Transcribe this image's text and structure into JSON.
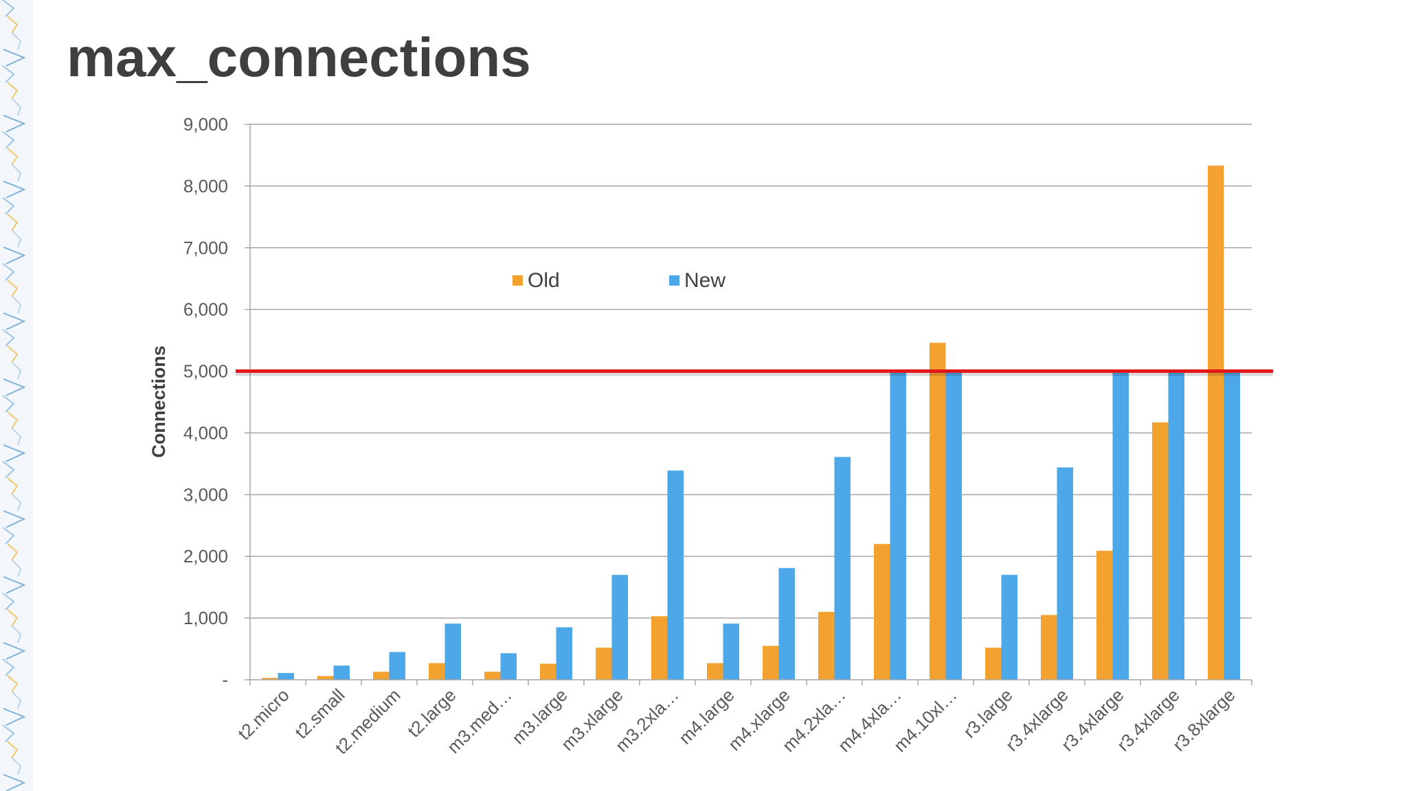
{
  "slide": {
    "title": "max_connections"
  },
  "colors": {
    "old": "#f4a22f",
    "new": "#4da8ea",
    "limit_line": "#e3161a",
    "grid": "#a6a6a6",
    "axis": "#a6a6a6"
  },
  "chart_data": {
    "type": "bar",
    "title": "",
    "xlabel": "",
    "ylabel": "Connections",
    "ylim": [
      0,
      9000
    ],
    "yticks": [
      0,
      1000,
      2000,
      3000,
      4000,
      5000,
      6000,
      7000,
      8000,
      9000
    ],
    "ytick_labels": [
      "-",
      "1,000",
      "2,000",
      "3,000",
      "4,000",
      "5,000",
      "6,000",
      "7,000",
      "8,000",
      "9,000"
    ],
    "grid": true,
    "legend_position": "top-center",
    "categories": [
      "t2.micro",
      "t2.small",
      "t2.medium",
      "t2.large",
      "m3.med…",
      "m3.large",
      "m3.xlarge",
      "m3.2xla…",
      "m4.large",
      "m4.xlarge",
      "m4.2xla…",
      "m4.4xla…",
      "m4.10xl…",
      "r3.large",
      "r3.4xlarge",
      "r3.4xlarge",
      "r3.4xlarge",
      "r3.8xlarge"
    ],
    "series": [
      {
        "name": "Old",
        "values": [
          30,
          60,
          130,
          270,
          130,
          260,
          520,
          1030,
          270,
          550,
          1100,
          2200,
          5460,
          520,
          1050,
          2090,
          4170,
          8330
        ]
      },
      {
        "name": "New",
        "values": [
          110,
          230,
          450,
          910,
          430,
          850,
          1700,
          3390,
          910,
          1810,
          3610,
          5000,
          5000,
          1700,
          3440,
          5000,
          5000,
          5000
        ]
      }
    ],
    "reference_line": {
      "y": 5000
    }
  }
}
